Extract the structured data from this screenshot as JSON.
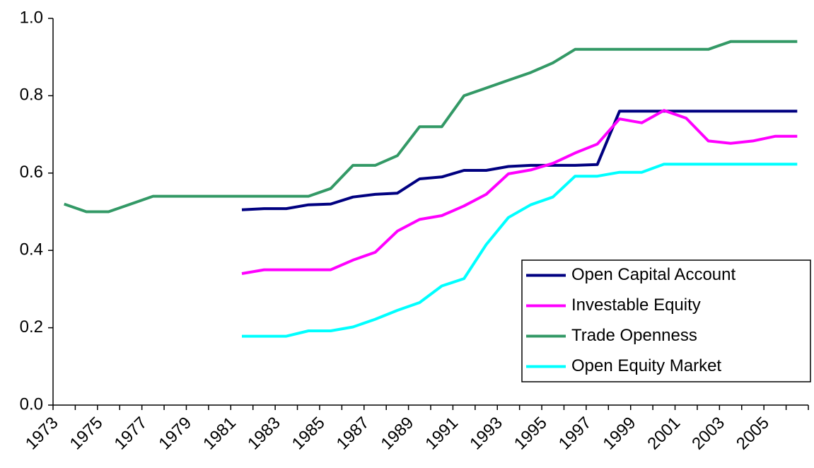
{
  "chart_data": {
    "type": "line",
    "categories": [
      "1973",
      null,
      "1975",
      null,
      "1977",
      null,
      "1979",
      null,
      "1981",
      null,
      "1983",
      null,
      "1985",
      null,
      "1987",
      null,
      "1989",
      null,
      "1991",
      null,
      "1993",
      null,
      "1995",
      null,
      "1997",
      null,
      "1999",
      null,
      "2001",
      null,
      "2003",
      null,
      "2005",
      null
    ],
    "ylim": [
      0,
      1
    ],
    "yticks": [
      {
        "value": 0,
        "label": "0.0"
      },
      0.2,
      0.4,
      0.6,
      0.8,
      {
        "value": 1,
        "label": "1.0"
      }
    ],
    "legend": "lower right",
    "series": [
      {
        "name": "Open Capital Account",
        "color": "#000080",
        "values": [
          null,
          null,
          null,
          null,
          null,
          null,
          null,
          null,
          0.505,
          0.508,
          0.508,
          0.518,
          0.52,
          0.538,
          0.545,
          0.548,
          0.585,
          0.59,
          0.607,
          0.607,
          0.617,
          0.62,
          0.62,
          0.62,
          0.622,
          0.76,
          0.76,
          0.76,
          0.76,
          0.76,
          0.76,
          0.76,
          0.76,
          0.76
        ]
      },
      {
        "name": "Investable Equity",
        "color": "#ff00ff",
        "values": [
          null,
          null,
          null,
          null,
          null,
          null,
          null,
          null,
          0.34,
          0.35,
          0.35,
          0.35,
          0.35,
          0.375,
          0.395,
          0.45,
          0.48,
          0.49,
          0.515,
          0.545,
          0.598,
          0.608,
          0.625,
          0.652,
          0.675,
          0.74,
          0.73,
          0.762,
          0.742,
          0.683,
          0.677,
          0.683,
          0.695,
          0.695
        ]
      },
      {
        "name": "Trade Openness",
        "color": "#339966",
        "values": [
          0.52,
          0.5,
          0.5,
          0.52,
          0.54,
          0.54,
          0.54,
          0.54,
          0.54,
          0.54,
          0.54,
          0.54,
          0.56,
          0.62,
          0.62,
          0.645,
          0.72,
          0.72,
          0.8,
          0.82,
          0.84,
          0.86,
          0.885,
          0.92,
          0.92,
          0.92,
          0.92,
          0.92,
          0.92,
          0.92,
          0.94,
          0.94,
          0.94,
          0.94
        ]
      },
      {
        "name": "Open Equity Market",
        "color": "#00ffff",
        "values": [
          null,
          null,
          null,
          null,
          null,
          null,
          null,
          null,
          0.178,
          0.178,
          0.178,
          0.192,
          0.192,
          0.202,
          0.222,
          0.245,
          0.265,
          0.308,
          0.327,
          0.415,
          0.485,
          0.518,
          0.538,
          0.592,
          0.592,
          0.602,
          0.602,
          0.623,
          0.623,
          0.623,
          0.623,
          0.623,
          0.623,
          0.623
        ]
      }
    ]
  }
}
